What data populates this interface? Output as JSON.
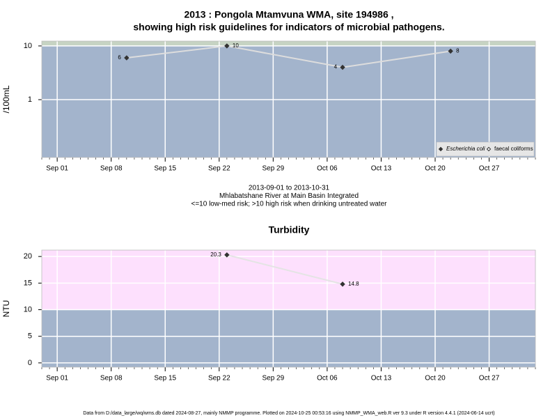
{
  "footer": "Data from D:/data_large/wq/wms.db dated 2024-08-27, mainly NMMP programme. Plotted on 2024-10-25 00:53:16 using NMMP_WMA_web.R ver 9.3 under R version 4.4.1 (2024-06-14 ucrt)",
  "chart_data": [
    {
      "type": "line",
      "title": [
        "2013 : Pongola Mtamvuna WMA, site 194986 ,",
        "showing high risk guidelines for indicators of microbial pathogens."
      ],
      "ylabel": "/100mL",
      "log_scale": true,
      "x": [
        "Sep 10",
        "Sep 23",
        "Oct 08",
        "Oct 22"
      ],
      "series": [
        {
          "name": "Escherichia coli",
          "color": "#333333",
          "marker": "filled-diamond",
          "values": [
            6,
            10,
            4,
            8
          ]
        },
        {
          "name": "faecal coliforms",
          "color": "#333333",
          "marker": "open-diamond",
          "values": [
            null,
            null,
            null,
            null
          ]
        }
      ],
      "xlim": [
        "Aug 30",
        "Nov 02"
      ],
      "xticks": [
        "Sep 01",
        "Sep 08",
        "Sep 15",
        "Sep 22",
        "Sep 29",
        "Oct 06",
        "Oct 13",
        "Oct 20",
        "Oct 27"
      ],
      "ylim": [
        0.084,
        12.3
      ],
      "yticks": [
        1,
        10
      ],
      "threshold": 10,
      "band_colors": [
        "#a3b4cc",
        "#c6d3c3"
      ],
      "line_color": "#dddddd",
      "grid": true,
      "legend": "bottom-right",
      "annotations": [
        "2013-09-01 to 2013-10-31",
        "Mhlabatshane River at Main Basin Integrated",
        "<=10 low-med risk; >10 high risk when drinking untreated water"
      ]
    },
    {
      "type": "line",
      "title": [
        "Turbidity"
      ],
      "ylabel": "NTU",
      "log_scale": false,
      "x": [
        "Sep 23",
        "Oct 08"
      ],
      "series": [
        {
          "name": "Turbidity",
          "color": "#333333",
          "marker": "filled-diamond",
          "values": [
            20.3,
            14.8
          ]
        }
      ],
      "xlim": [
        "Aug 30",
        "Nov 02"
      ],
      "xticks": [
        "Sep 01",
        "Sep 08",
        "Sep 15",
        "Sep 22",
        "Sep 29",
        "Oct 06",
        "Oct 13",
        "Oct 20",
        "Oct 27"
      ],
      "ylim": [
        -0.8,
        21.2
      ],
      "yticks": [
        0,
        5,
        10,
        15,
        20
      ],
      "threshold": 10,
      "band_colors": [
        "#a3b4cc",
        "#fde0fd"
      ],
      "line_color": "#e4e4e4",
      "grid": true,
      "legend": "none"
    }
  ]
}
